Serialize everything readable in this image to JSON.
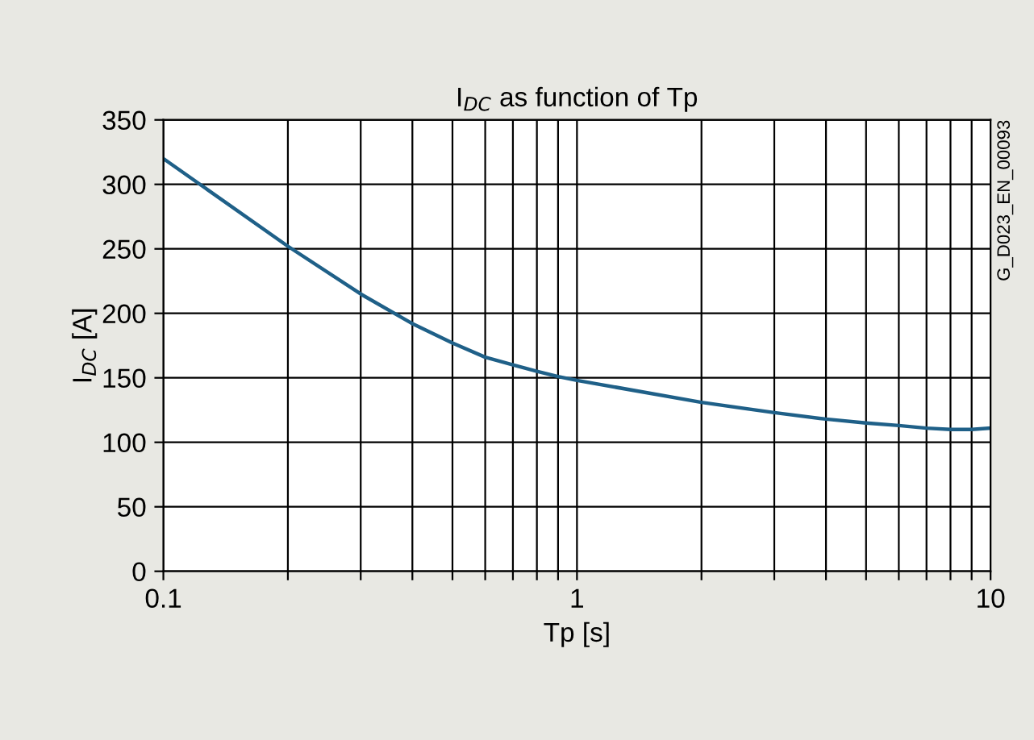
{
  "chart_data": {
    "type": "line",
    "title": "I$_{DC}$ as function of Tp",
    "xlabel": "Tp [s]",
    "ylabel": "I$_{DC}$ [A]",
    "annotations": [
      "G_D023_EN_00093"
    ],
    "x": [
      0.1,
      0.2,
      0.3,
      0.4,
      0.5,
      0.6,
      0.7,
      0.8,
      0.9,
      1,
      2,
      3,
      4,
      5,
      6,
      7,
      8,
      9,
      10
    ],
    "series": [
      {
        "color": "#1f6088",
        "values": [
          320,
          252,
          215,
          192,
          177,
          166,
          160,
          155,
          151,
          148,
          131,
          123,
          118,
          115,
          113,
          111,
          110,
          110,
          111
        ]
      }
    ],
    "log": "x",
    "xlim": [
      0.1,
      10
    ],
    "ylim": [
      0,
      350
    ],
    "xticks": [
      0.1,
      {
        "value": 0.2,
        "label": null
      },
      {
        "value": 0.3,
        "label": null
      },
      {
        "value": 0.4,
        "label": null
      },
      {
        "value": 0.5,
        "label": null
      },
      {
        "value": 0.6,
        "label": null
      },
      {
        "value": 0.7,
        "label": null
      },
      {
        "value": 0.8,
        "label": null
      },
      {
        "value": 0.9,
        "label": null
      },
      1,
      {
        "value": 2,
        "label": null
      },
      {
        "value": 3,
        "label": null
      },
      {
        "value": 4,
        "label": null
      },
      {
        "value": 5,
        "label": null
      },
      {
        "value": 6,
        "label": null
      },
      {
        "value": 7,
        "label": null
      },
      {
        "value": 8,
        "label": null
      },
      {
        "value": 9,
        "label": null
      },
      10
    ],
    "yticks": [
      0,
      50,
      100,
      150,
      200,
      250,
      300,
      350
    ],
    "grid": true,
    "marker": "none",
    "line_style": "solid"
  }
}
